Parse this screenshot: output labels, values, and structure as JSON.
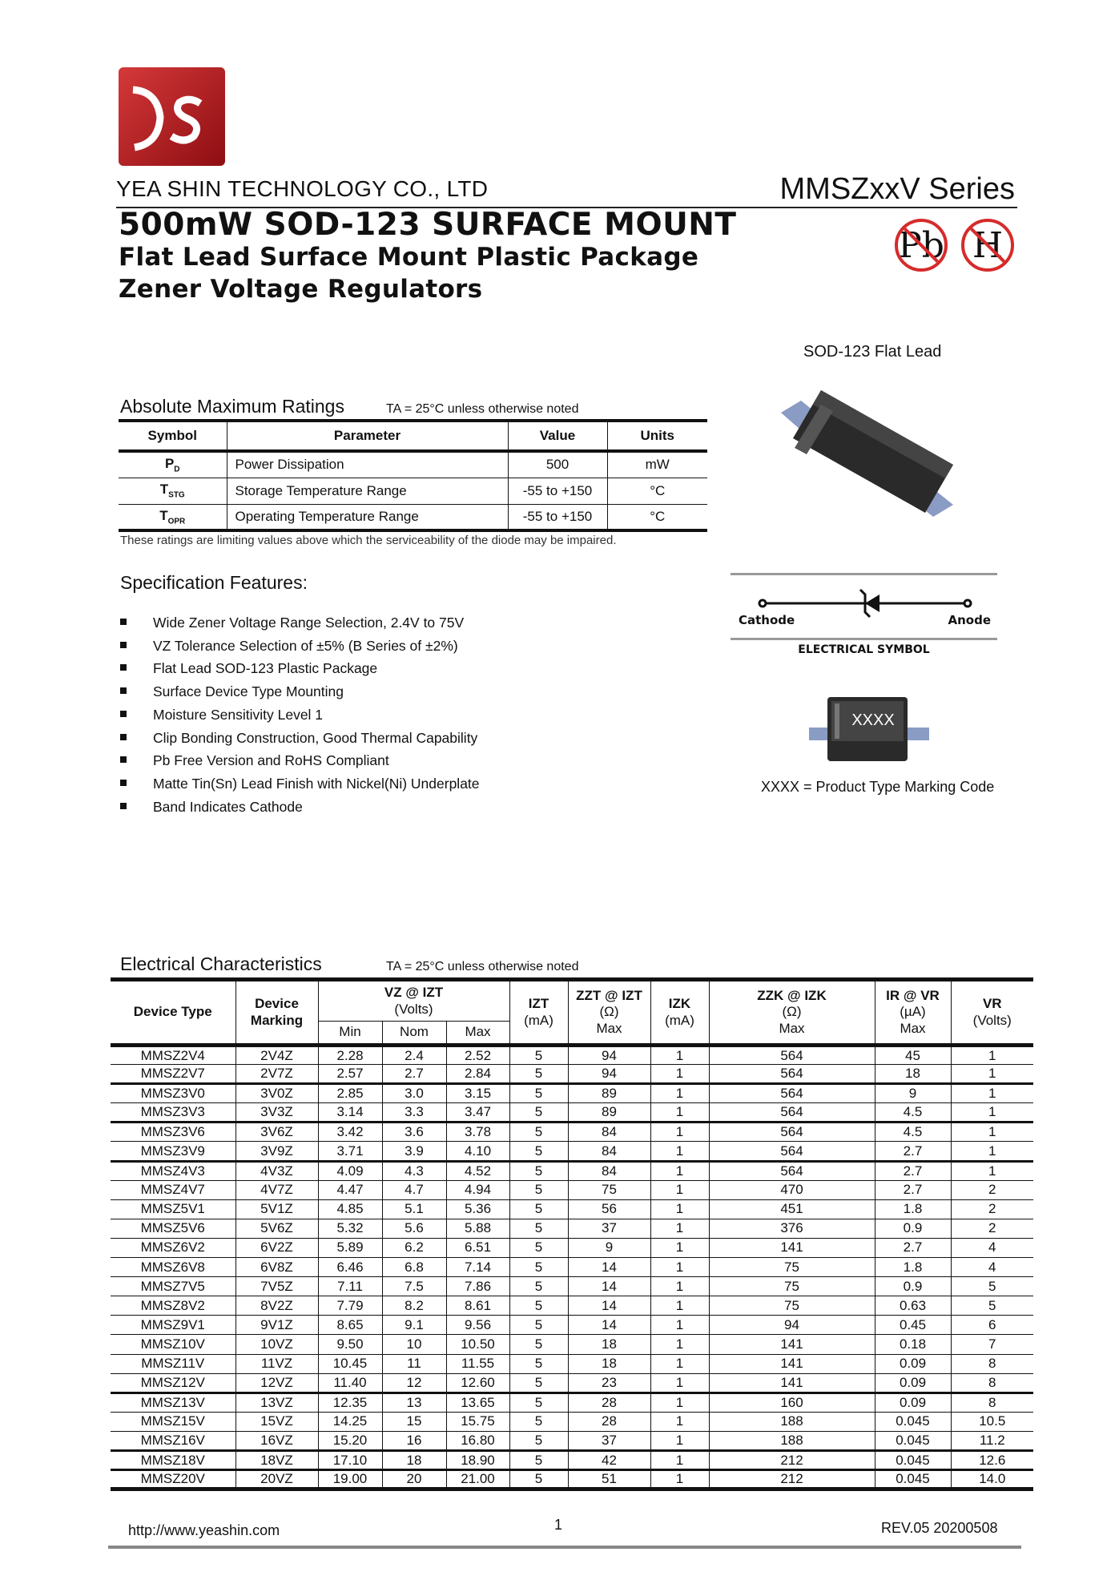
{
  "header": {
    "logo_text": "YS",
    "company": "YEA SHIN TECHNOLOGY CO., LTD",
    "series": "MMSZxxV Series",
    "title": "500mW SOD-123 SURFACE MOUNT",
    "subtitle1": "Flat Lead Surface Mount Plastic Package",
    "subtitle2": "Zener Voltage Regulators",
    "badges": [
      "Pb",
      "H"
    ]
  },
  "package": {
    "label": "SOD-123 Flat Lead"
  },
  "abs_max": {
    "heading": "Absolute Maximum Ratings",
    "condition": "TA = 25°C unless otherwise noted",
    "columns": [
      "Symbol",
      "Parameter",
      "Value",
      "Units"
    ],
    "rows": [
      {
        "symbol": "P",
        "sub": "D",
        "parameter": "Power Dissipation",
        "value": "500",
        "units": "mW"
      },
      {
        "symbol": "T",
        "sub": "STG",
        "parameter": "Storage Temperature Range",
        "value": "-55 to +150",
        "units": "°C"
      },
      {
        "symbol": "T",
        "sub": "OPR",
        "parameter": "Operating Temperature Range",
        "value": "-55 to +150",
        "units": "°C"
      }
    ],
    "note": "These ratings are limiting values above which the serviceability of the diode may be impaired."
  },
  "features": {
    "heading": "Specification Features:",
    "items": [
      "Wide Zener Voltage Range Selection, 2.4V to 75V",
      "VZ Tolerance Selection of ±5% (B Series of ±2%)",
      "Flat Lead SOD-123 Plastic Package",
      "Surface Device Type Mounting",
      "Moisture Sensitivity Level 1",
      "Clip Bonding Construction, Good Thermal Capability",
      "Pb Free Version and RoHS Compliant",
      "Matte Tin(Sn) Lead Finish with Nickel(Ni) Underplate",
      "Band Indicates Cathode"
    ]
  },
  "symbol": {
    "cathode": "Cathode",
    "anode": "Anode",
    "caption": "ELECTRICAL SYMBOL"
  },
  "marking": {
    "code": "XXXX",
    "caption": "XXXX = Product Type Marking Code"
  },
  "electrical": {
    "heading": "Electrical Characteristics",
    "condition": "TA = 25°C unless otherwise noted",
    "headers": {
      "device_type": "Device Type",
      "device_marking": "Device Marking",
      "vz": "VZ @ IZT",
      "vz_unit": "(Volts)",
      "min": "Min",
      "nom": "Nom",
      "max": "Max",
      "izt": "IZT",
      "izt_unit": "(mA)",
      "zzt": "ZZT @ IZT",
      "zzt_unit": "(Ω)",
      "zzt_max": "Max",
      "izk": "IZK",
      "izk_unit": "(mA)",
      "zzk": "ZZK @ IZK",
      "zzk_unit": "(Ω)",
      "zzk_max": "Max",
      "ir": "IR @ VR",
      "ir_unit": "(µA)",
      "ir_max": "Max",
      "vr": "VR",
      "vr_unit": "(Volts)"
    },
    "rows": [
      [
        "MMSZ2V4",
        "2V4Z",
        "2.28",
        "2.4",
        "2.52",
        "5",
        "94",
        "1",
        "564",
        "45",
        "1"
      ],
      [
        "MMSZ2V7",
        "2V7Z",
        "2.57",
        "2.7",
        "2.84",
        "5",
        "94",
        "1",
        "564",
        "18",
        "1"
      ],
      [
        "MMSZ3V0",
        "3V0Z",
        "2.85",
        "3.0",
        "3.15",
        "5",
        "89",
        "1",
        "564",
        "9",
        "1"
      ],
      [
        "MMSZ3V3",
        "3V3Z",
        "3.14",
        "3.3",
        "3.47",
        "5",
        "89",
        "1",
        "564",
        "4.5",
        "1"
      ],
      [
        "MMSZ3V6",
        "3V6Z",
        "3.42",
        "3.6",
        "3.78",
        "5",
        "84",
        "1",
        "564",
        "4.5",
        "1"
      ],
      [
        "MMSZ3V9",
        "3V9Z",
        "3.71",
        "3.9",
        "4.10",
        "5",
        "84",
        "1",
        "564",
        "2.7",
        "1"
      ],
      [
        "MMSZ4V3",
        "4V3Z",
        "4.09",
        "4.3",
        "4.52",
        "5",
        "84",
        "1",
        "564",
        "2.7",
        "1"
      ],
      [
        "MMSZ4V7",
        "4V7Z",
        "4.47",
        "4.7",
        "4.94",
        "5",
        "75",
        "1",
        "470",
        "2.7",
        "2"
      ],
      [
        "MMSZ5V1",
        "5V1Z",
        "4.85",
        "5.1",
        "5.36",
        "5",
        "56",
        "1",
        "451",
        "1.8",
        "2"
      ],
      [
        "MMSZ5V6",
        "5V6Z",
        "5.32",
        "5.6",
        "5.88",
        "5",
        "37",
        "1",
        "376",
        "0.9",
        "2"
      ],
      [
        "MMSZ6V2",
        "6V2Z",
        "5.89",
        "6.2",
        "6.51",
        "5",
        "9",
        "1",
        "141",
        "2.7",
        "4"
      ],
      [
        "MMSZ6V8",
        "6V8Z",
        "6.46",
        "6.8",
        "7.14",
        "5",
        "14",
        "1",
        "75",
        "1.8",
        "4"
      ],
      [
        "MMSZ7V5",
        "7V5Z",
        "7.11",
        "7.5",
        "7.86",
        "5",
        "14",
        "1",
        "75",
        "0.9",
        "5"
      ],
      [
        "MMSZ8V2",
        "8V2Z",
        "7.79",
        "8.2",
        "8.61",
        "5",
        "14",
        "1",
        "75",
        "0.63",
        "5"
      ],
      [
        "MMSZ9V1",
        "9V1Z",
        "8.65",
        "9.1",
        "9.56",
        "5",
        "14",
        "1",
        "94",
        "0.45",
        "6"
      ],
      [
        "MMSZ10V",
        "10VZ",
        "9.50",
        "10",
        "10.50",
        "5",
        "18",
        "1",
        "141",
        "0.18",
        "7"
      ],
      [
        "MMSZ11V",
        "11VZ",
        "10.45",
        "11",
        "11.55",
        "5",
        "18",
        "1",
        "141",
        "0.09",
        "8"
      ],
      [
        "MMSZ12V",
        "12VZ",
        "11.40",
        "12",
        "12.60",
        "5",
        "23",
        "1",
        "141",
        "0.09",
        "8"
      ],
      [
        "MMSZ13V",
        "13VZ",
        "12.35",
        "13",
        "13.65",
        "5",
        "28",
        "1",
        "160",
        "0.09",
        "8"
      ],
      [
        "MMSZ15V",
        "15VZ",
        "14.25",
        "15",
        "15.75",
        "5",
        "28",
        "1",
        "188",
        "0.045",
        "10.5"
      ],
      [
        "MMSZ16V",
        "16VZ",
        "15.20",
        "16",
        "16.80",
        "5",
        "37",
        "1",
        "188",
        "0.045",
        "11.2"
      ],
      [
        "MMSZ18V",
        "18VZ",
        "17.10",
        "18",
        "18.90",
        "5",
        "42",
        "1",
        "212",
        "0.045",
        "12.6"
      ],
      [
        "MMSZ20V",
        "20VZ",
        "19.00",
        "20",
        "21.00",
        "5",
        "51",
        "1",
        "212",
        "0.045",
        "14.0"
      ]
    ]
  },
  "footer": {
    "url": "http://www.yeashin.com",
    "page": "1",
    "rev": "REV.05 20200508"
  },
  "colors": {
    "logo_red": "#b5191c",
    "badge_red": "#d62b2b",
    "package_body": "#2a2a2a",
    "package_lead": "#8a9cc4"
  }
}
